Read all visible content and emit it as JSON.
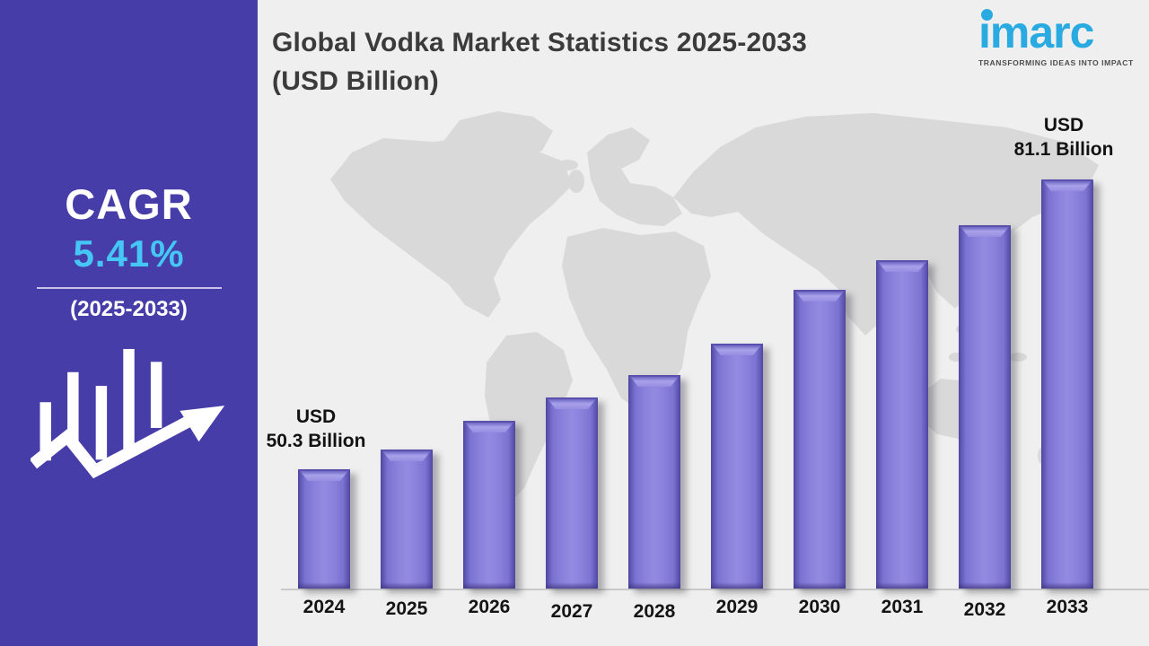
{
  "header": {
    "title_line1": "Global Vodka Market Statistics 2025-2033",
    "title_line2": "(USD Billion)"
  },
  "logo": {
    "brand": "imarc",
    "tagline": "TRANSFORMING IDEAS INTO IMPACT",
    "brand_color": "#29ABE2"
  },
  "sidebar": {
    "cagr_label": "CAGR",
    "cagr_value": "5.41%",
    "period": "(2025-2033)",
    "bg_color": "#473DA9",
    "value_color": "#45C6F4",
    "icon": "growth-chart-arrow-icon"
  },
  "chart_data": {
    "type": "bar",
    "title": "Global Vodka Market Statistics 2025-2033 (USD Billion)",
    "unit": "USD Billion",
    "categories": [
      "2024",
      "2025",
      "2026",
      "2027",
      "2028",
      "2029",
      "2030",
      "2031",
      "2032",
      "2033"
    ],
    "values": [
      50.3,
      52.4,
      55.4,
      57.9,
      60.3,
      63.6,
      69.4,
      72.5,
      76.2,
      81.1
    ],
    "labeled_points": {
      "first": {
        "year": "2024",
        "line1": "USD",
        "line2": "50.3 Billion"
      },
      "last": {
        "year": "2033",
        "line1": "USD",
        "line2": "81.1 Billion"
      }
    },
    "bar_color": "#8A81DC",
    "background": "world-map",
    "ylim": [
      37.6,
      85
    ],
    "grid": false,
    "legend": "none"
  }
}
